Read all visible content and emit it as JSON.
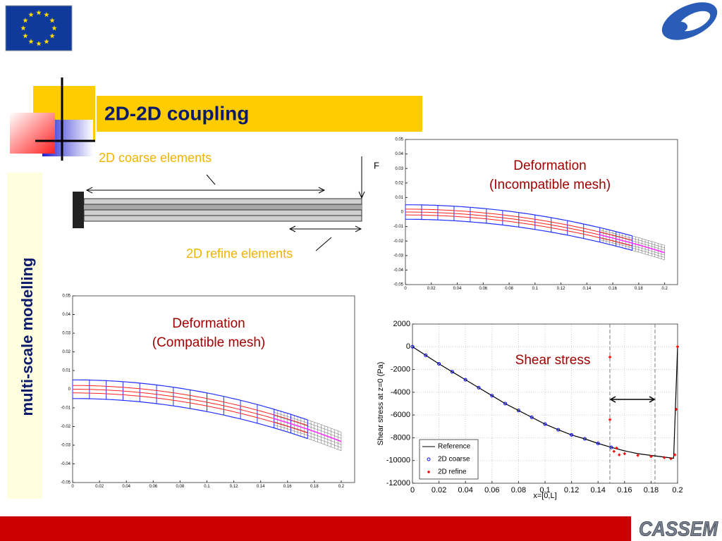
{
  "header": {
    "title": "2D-2D coupling",
    "side_label": "multi-scale modelling"
  },
  "beam_diagram": {
    "coarse_label": "2D coarse elements",
    "refine_label": "2D refine elements",
    "force_label": "F"
  },
  "plot_incompatible": {
    "annotation": [
      "Deformation",
      "(Incompatible mesh)"
    ],
    "xlim": [
      0,
      0.21
    ],
    "ylim": [
      -0.05,
      0.05
    ],
    "xticks": [
      0,
      0.02,
      0.04,
      0.06,
      0.08,
      0.1,
      0.12,
      0.14,
      0.16,
      0.18,
      0.2
    ],
    "yticks": [
      0.05,
      0.04,
      0.03,
      0.02,
      0.01,
      0,
      -0.01,
      -0.02,
      -0.03,
      -0.04,
      -0.05
    ]
  },
  "plot_compatible": {
    "annotation": [
      "Deformation",
      "(Compatible mesh)"
    ],
    "xlim": [
      0,
      0.21
    ],
    "ylim": [
      -0.05,
      0.05
    ],
    "xticks": [
      0,
      0.02,
      0.04,
      0.06,
      0.08,
      0.1,
      0.12,
      0.14,
      0.16,
      0.18,
      0.2
    ],
    "yticks": [
      0.05,
      0.04,
      0.03,
      0.02,
      0.01,
      0,
      -0.01,
      -0.02,
      -0.03,
      -0.04,
      -0.05
    ]
  },
  "plot_shear": {
    "annotation": "Shear stress",
    "xlabel": "x=[0,L]",
    "ylabel": "Shear stress at z=0 (Pa)",
    "xlim": [
      0,
      0.2
    ],
    "ylim": [
      -12000,
      2000
    ],
    "xticks": [
      0,
      0.02,
      0.04,
      0.06,
      0.08,
      0.1,
      0.12,
      0.14,
      0.16,
      0.18,
      0.2
    ],
    "yticks": [
      2000,
      0,
      -2000,
      -4000,
      -6000,
      -8000,
      -10000,
      -12000
    ],
    "grid": true,
    "series": [
      {
        "name": "Reference",
        "color": "#000000",
        "x": [
          0,
          0.01,
          0.02,
          0.03,
          0.04,
          0.05,
          0.06,
          0.07,
          0.08,
          0.09,
          0.1,
          0.11,
          0.12,
          0.13,
          0.14,
          0.15,
          0.16,
          0.17,
          0.18,
          0.19,
          0.197,
          0.2
        ],
        "values": [
          0,
          -750,
          -1500,
          -2200,
          -2900,
          -3600,
          -4300,
          -5000,
          -5600,
          -6200,
          -6800,
          -7300,
          -7750,
          -8100,
          -8500,
          -8850,
          -9150,
          -9400,
          -9550,
          -9700,
          -9800,
          0
        ]
      },
      {
        "name": "2D coarse",
        "color": "#0000ff",
        "x": [
          0,
          0.01,
          0.02,
          0.03,
          0.04,
          0.05,
          0.06,
          0.07,
          0.08,
          0.09,
          0.1,
          0.11,
          0.12,
          0.13,
          0.14,
          0.15
        ],
        "values": [
          0,
          -750,
          -1500,
          -2200,
          -2900,
          -3600,
          -4300,
          -5000,
          -5600,
          -6200,
          -6800,
          -7300,
          -7750,
          -8100,
          -8500,
          -8850
        ]
      },
      {
        "name": "2D refine",
        "color": "#ff0000",
        "x": [
          0.149,
          0.149,
          0.152,
          0.154,
          0.156,
          0.16,
          0.17,
          0.18,
          0.19,
          0.195,
          0.198,
          0.199,
          0.2
        ],
        "values": [
          -900,
          -6400,
          -9200,
          -8900,
          -9500,
          -9400,
          -9550,
          -9650,
          -9750,
          -9850,
          -9500,
          -5500,
          0
        ]
      }
    ]
  },
  "footer": {
    "logo": "CASSEM"
  }
}
